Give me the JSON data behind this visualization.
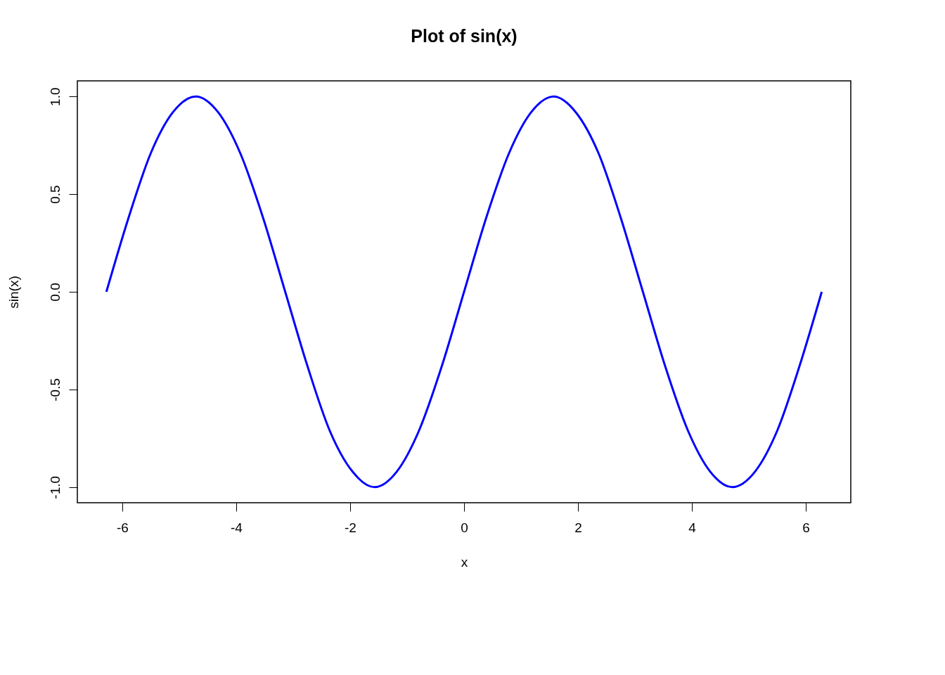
{
  "chart_data": {
    "type": "line",
    "title": "Plot of sin(x)",
    "xlabel": "x",
    "ylabel": "sin(x)",
    "x": [
      -6.28,
      -5.89,
      -5.5,
      -5.11,
      -4.71,
      -4.32,
      -3.93,
      -3.53,
      -3.14,
      -2.75,
      -2.36,
      -1.96,
      -1.57,
      -1.18,
      -0.79,
      -0.39,
      0,
      0.39,
      0.79,
      1.18,
      1.57,
      1.96,
      2.36,
      2.75,
      3.14,
      3.53,
      3.93,
      4.32,
      4.71,
      5.11,
      5.5,
      5.89,
      6.28
    ],
    "series": [
      {
        "color": "#0000ff",
        "values": [
          0,
          0.38,
          0.71,
          0.92,
          1,
          0.92,
          0.71,
          0.38,
          0,
          -0.38,
          -0.71,
          -0.92,
          -1,
          -0.92,
          -0.71,
          -0.38,
          0,
          0.38,
          0.71,
          0.92,
          1,
          0.92,
          0.71,
          0.38,
          0,
          -0.38,
          -0.71,
          -0.92,
          -1,
          -0.92,
          -0.71,
          -0.38,
          0
        ]
      }
    ],
    "xlim": [
      -6.79,
      6.79
    ],
    "ylim": [
      -1.08,
      1.08
    ],
    "xticks": [
      -6,
      -4,
      -2,
      0,
      2,
      4,
      6
    ],
    "yticks": [
      {
        "value": -1,
        "label": "-1.0"
      },
      {
        "value": -0.5,
        "label": "-0.5"
      },
      {
        "value": 0,
        "label": "0.0"
      },
      {
        "value": 0.5,
        "label": "0.5"
      },
      {
        "value": 1,
        "label": "1.0"
      }
    ],
    "grid": false,
    "marker": "none",
    "line_style": "solid"
  }
}
